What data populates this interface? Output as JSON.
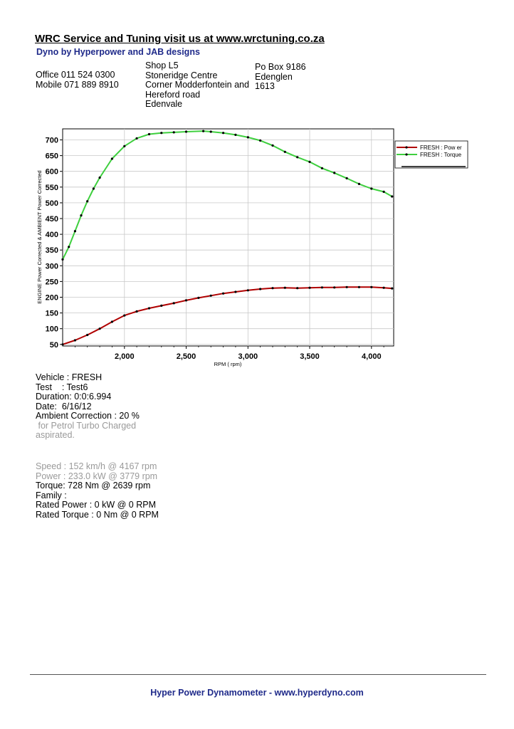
{
  "header": {
    "title": "WRC Service and Tuning visit us at www.wrctuning.co.za",
    "subtitle": "Dyno by Hyperpower and JAB designs",
    "phones": [
      "Office 011 524 0300",
      "Mobile 071 889 8910"
    ],
    "address": [
      "Shop L5",
      "Stoneridge Centre",
      "Corner Modderfontein and",
      "Hereford road",
      "Edenvale"
    ],
    "postal": [
      "Po Box 9186",
      "Edenglen",
      "1613"
    ]
  },
  "chart_data": {
    "type": "line",
    "xlabel": "RPM ( rpm)",
    "ylabel": "ENGINE Power Corrected & AMBIENT Power Corrected",
    "xlim": [
      1500,
      4180
    ],
    "ylim": [
      45,
      735
    ],
    "xticks": [
      2000,
      2500,
      3000,
      3500,
      4000
    ],
    "xtick_labels": [
      "2,000",
      "2,500",
      "3,000",
      "3,500",
      "4,000"
    ],
    "yticks": [
      50,
      100,
      150,
      200,
      250,
      300,
      350,
      400,
      450,
      500,
      550,
      600,
      650,
      700
    ],
    "grid": true,
    "legend_position": "top-right",
    "series": [
      {
        "name": "FRESH : Pow er",
        "color": "#b00000",
        "x": [
          1500,
          1600,
          1700,
          1800,
          1900,
          2000,
          2100,
          2200,
          2300,
          2400,
          2500,
          2600,
          2700,
          2800,
          2900,
          3000,
          3100,
          3200,
          3300,
          3400,
          3500,
          3600,
          3700,
          3800,
          3900,
          4000,
          4100,
          4167
        ],
        "y": [
          50,
          63,
          80,
          100,
          122,
          142,
          155,
          165,
          173,
          181,
          190,
          198,
          205,
          212,
          217,
          222,
          226,
          229,
          230,
          229,
          230,
          231,
          231,
          232,
          232,
          232,
          230,
          228
        ]
      },
      {
        "name": "FRESH : Torque",
        "color": "#3ecf3e",
        "x": [
          1500,
          1550,
          1600,
          1650,
          1700,
          1750,
          1800,
          1900,
          2000,
          2100,
          2200,
          2300,
          2400,
          2500,
          2639,
          2700,
          2800,
          2900,
          3000,
          3100,
          3200,
          3300,
          3400,
          3500,
          3600,
          3700,
          3800,
          3900,
          4000,
          4100,
          4167
        ],
        "y": [
          320,
          360,
          410,
          460,
          505,
          545,
          580,
          640,
          680,
          705,
          718,
          722,
          724,
          726,
          728,
          726,
          722,
          716,
          708,
          698,
          682,
          662,
          645,
          630,
          610,
          595,
          578,
          560,
          545,
          535,
          520
        ]
      }
    ]
  },
  "details": {
    "vehicle": "Vehicle : FRESH",
    "test": "Test    : Test6",
    "duration": "Duration: 0:0:6.994",
    "date": "Date:  6/16/12",
    "ambient": "Ambient Correction : 20 %",
    "note1": " for Petrol Turbo Charged",
    "note2": "aspirated.",
    "speed": "Speed : 152 km/h @ 4167 rpm",
    "power": "Power : 233.0 kW @ 3779 rpm",
    "torque": "Torque: 728 Nm @ 2639 rpm",
    "family": "Family :",
    "rated_power": "Rated Power : 0 kW @ 0 RPM",
    "rated_torque": "Rated Torque : 0 Nm @ 0 RPM"
  },
  "footer": {
    "text": "Hyper Power Dynamometer  -  www.hyperdyno.com"
  }
}
